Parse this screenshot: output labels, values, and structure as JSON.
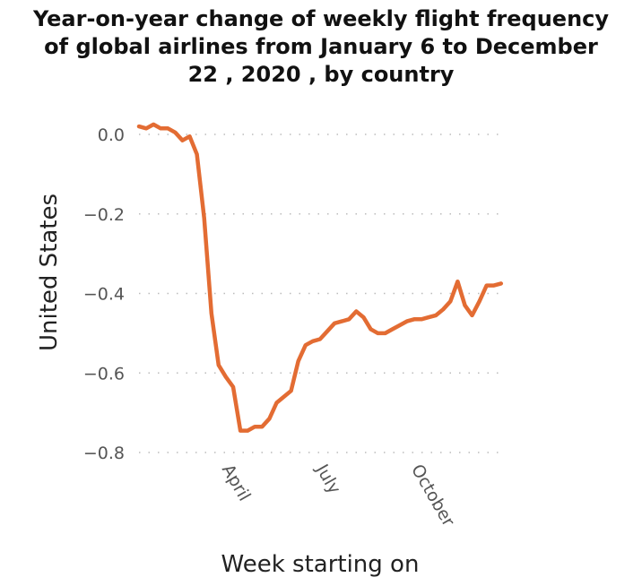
{
  "chart_data": {
    "type": "line",
    "title": "Year-on-year change of weekly flight frequency\nof global airlines from January 6 to December\n22 , 2020 , by country",
    "xlabel": "Week starting on",
    "ylabel": "United States",
    "ylim": [
      -0.8,
      0.0
    ],
    "y_ticks": [
      0.0,
      -0.2,
      -0.4,
      -0.6,
      -0.8
    ],
    "y_tick_labels": [
      "0.0",
      "−0.2",
      "−0.4",
      "−0.6",
      "−0.8"
    ],
    "x_tick_labels": [
      "April",
      "July",
      "October"
    ],
    "x_tick_dates": [
      "2020-04-01",
      "2020-07-01",
      "2020-10-01"
    ],
    "xlim": [
      "2020-01-06",
      "2020-12-22"
    ],
    "grid": "dotted horizontal",
    "line_color": "#e36c33",
    "x": [
      "2020-01-06",
      "2020-01-13",
      "2020-01-20",
      "2020-01-27",
      "2020-02-03",
      "2020-02-10",
      "2020-02-17",
      "2020-02-24",
      "2020-03-02",
      "2020-03-09",
      "2020-03-16",
      "2020-03-23",
      "2020-03-30",
      "2020-04-06",
      "2020-04-13",
      "2020-04-20",
      "2020-04-27",
      "2020-05-04",
      "2020-05-11",
      "2020-05-18",
      "2020-05-25",
      "2020-06-01",
      "2020-06-08",
      "2020-06-15",
      "2020-06-22",
      "2020-06-29",
      "2020-07-06",
      "2020-07-13",
      "2020-07-20",
      "2020-07-27",
      "2020-08-03",
      "2020-08-10",
      "2020-08-17",
      "2020-08-24",
      "2020-08-31",
      "2020-09-07",
      "2020-09-14",
      "2020-09-21",
      "2020-09-28",
      "2020-10-05",
      "2020-10-12",
      "2020-10-19",
      "2020-10-26",
      "2020-11-02",
      "2020-11-09",
      "2020-11-16",
      "2020-11-23",
      "2020-11-30",
      "2020-12-07",
      "2020-12-14",
      "2020-12-21"
    ],
    "values": [
      0.02,
      0.015,
      0.025,
      0.015,
      0.015,
      0.005,
      -0.015,
      -0.005,
      -0.05,
      -0.21,
      -0.45,
      -0.58,
      -0.61,
      -0.635,
      -0.745,
      -0.745,
      -0.735,
      -0.735,
      -0.715,
      -0.675,
      -0.66,
      -0.645,
      -0.57,
      -0.53,
      -0.52,
      -0.515,
      -0.495,
      -0.475,
      -0.47,
      -0.465,
      -0.445,
      -0.46,
      -0.49,
      -0.5,
      -0.5,
      -0.49,
      -0.48,
      -0.47,
      -0.465,
      -0.465,
      -0.46,
      -0.455,
      -0.44,
      -0.42,
      -0.37,
      -0.43,
      -0.455,
      -0.42,
      -0.38,
      -0.38,
      -0.375
    ]
  }
}
